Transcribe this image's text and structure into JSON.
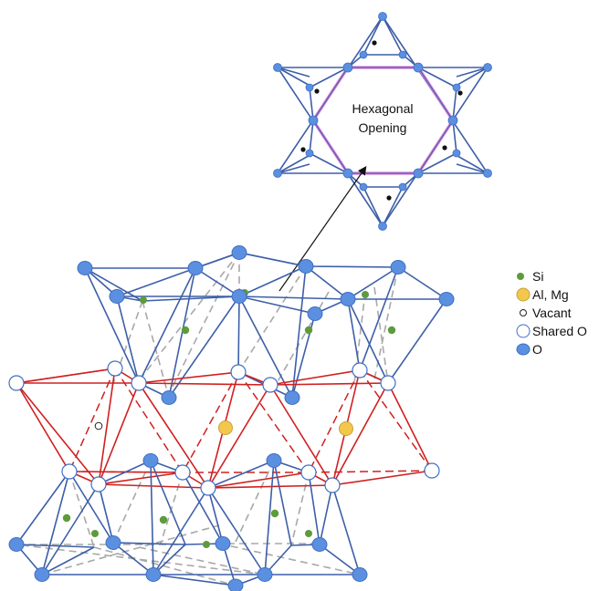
{
  "hexagon": {
    "label_line1": "Hexagonal",
    "label_line2": "Opening"
  },
  "legend": {
    "items": [
      {
        "key": "si",
        "label": "Si",
        "color": "#5e9b3c"
      },
      {
        "key": "al_mg",
        "label": "Al, Mg",
        "color": "#f2c74c"
      },
      {
        "key": "vacant",
        "label": "Vacant",
        "color": "#ffffff"
      },
      {
        "key": "shared_o",
        "label": "Shared O",
        "color": "#ffffff"
      },
      {
        "key": "o",
        "label": "O",
        "color": "#5b8fe0"
      }
    ]
  },
  "colors": {
    "tetrahedral_bond": "#3d5fa8",
    "octahedral_bond": "#d02020",
    "back_bond": "#a0a0a0",
    "hexagon_ring": "#d47ad6",
    "oxygen": "#5b8fe0",
    "silicon": "#5e9b3c",
    "aluminum": "#f2c74c"
  }
}
